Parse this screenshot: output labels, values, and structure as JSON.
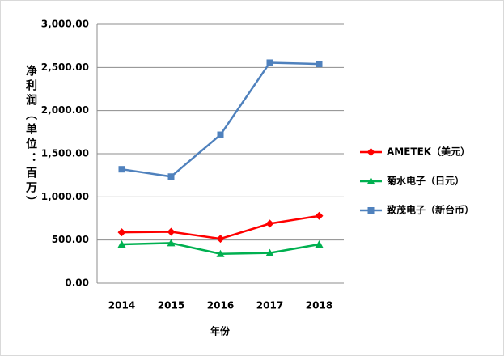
{
  "chart_data": {
    "type": "line",
    "x_label": "年份",
    "y_label": "净利润（单位：百万）",
    "categories": [
      "2014",
      "2015",
      "2016",
      "2017",
      "2018"
    ],
    "series": [
      {
        "name": "AMETEK（美元）",
        "color": "#ff0000",
        "marker": "diamond",
        "values": [
          590,
          595,
          515,
          690,
          780
        ]
      },
      {
        "name": "菊水电子（日元）",
        "color": "#00b050",
        "marker": "triangle",
        "values": [
          450,
          465,
          340,
          350,
          450
        ]
      },
      {
        "name": "致茂电子（新台币）",
        "color": "#4f81bd",
        "marker": "square",
        "values": [
          1320,
          1235,
          1720,
          2555,
          2540
        ]
      }
    ],
    "ylim": [
      0,
      3000
    ],
    "yticks": [
      {
        "value": 0,
        "label": "0.00"
      },
      {
        "value": 500,
        "label": "500.00"
      },
      {
        "value": 1000,
        "label": "1,000.00"
      },
      {
        "value": 1500,
        "label": "1,500.00"
      },
      {
        "value": 2000,
        "label": "2,000.00"
      },
      {
        "value": 2500,
        "label": "2,500.00"
      },
      {
        "value": 3000,
        "label": "3,000.00"
      }
    ],
    "grid": true,
    "legend": "right"
  }
}
